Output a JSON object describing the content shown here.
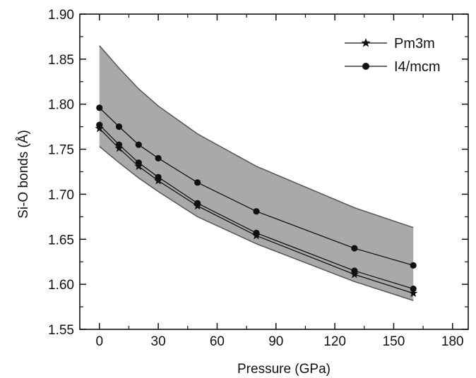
{
  "chart_data": {
    "type": "line",
    "title": "",
    "xlabel": "Pressure (GPa)",
    "ylabel": "Si-O bonds (Å)",
    "xlim": [
      -10,
      188
    ],
    "ylim": [
      1.55,
      1.9
    ],
    "xticks": [
      0,
      30,
      60,
      90,
      120,
      150,
      180
    ],
    "yticks": [
      1.55,
      1.6,
      1.65,
      1.7,
      1.75,
      1.8,
      1.85,
      1.9
    ],
    "x_tick_labels": [
      "0",
      "30",
      "60",
      "90",
      "120",
      "150",
      "180"
    ],
    "y_tick_labels": [
      "1.55",
      "1.60",
      "1.65",
      "1.70",
      "1.75",
      "1.80",
      "1.85",
      "1.90"
    ],
    "legend_position": "top-right",
    "grid": false,
    "shaded_band": {
      "x": [
        0,
        10,
        20,
        30,
        50,
        80,
        130,
        160
      ],
      "upper": [
        1.865,
        1.84,
        1.817,
        1.798,
        1.767,
        1.731,
        1.685,
        1.663
      ],
      "lower": [
        1.753,
        1.735,
        1.718,
        1.703,
        1.675,
        1.645,
        1.603,
        1.582
      ],
      "color": "#a9a9a9"
    },
    "series": [
      {
        "name": "Pm3m",
        "marker": "star",
        "x": [
          0,
          10,
          20,
          30,
          50,
          80,
          130,
          160
        ],
        "values": [
          1.773,
          1.751,
          1.731,
          1.715,
          1.687,
          1.654,
          1.611,
          1.59
        ]
      },
      {
        "name": "I4/mcm",
        "marker": "circle",
        "x": [
          0,
          10,
          20,
          30,
          50,
          80,
          130,
          160
        ],
        "values": [
          1.796,
          1.775,
          1.755,
          1.74,
          1.713,
          1.681,
          1.64,
          1.621
        ]
      },
      {
        "marker": "circle",
        "x": [
          0,
          10,
          20,
          30,
          50,
          80,
          130,
          160
        ],
        "values": [
          1.777,
          1.755,
          1.735,
          1.719,
          1.69,
          1.657,
          1.615,
          1.595
        ]
      }
    ],
    "colors": {
      "line": "#111111",
      "band_edge": "#555555",
      "frame": "#111111"
    }
  }
}
